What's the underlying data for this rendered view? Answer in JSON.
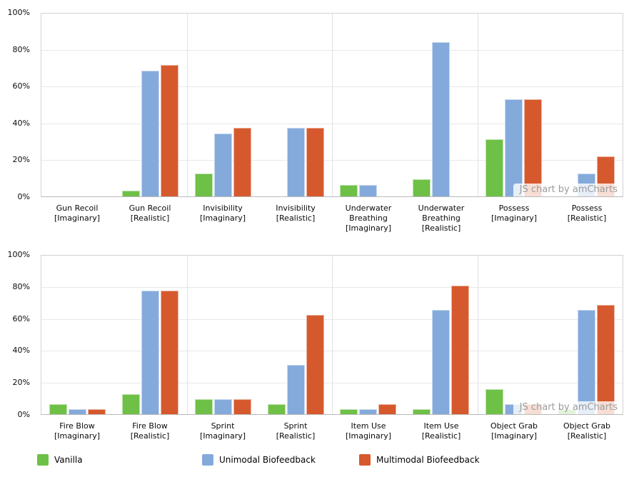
{
  "watermark": {
    "text": "JS chart by amCharts"
  },
  "y_axis": {
    "tick_labels": [
      "100%",
      "80%",
      "60%",
      "40%",
      "20%",
      "0%"
    ]
  },
  "colors": {
    "vanilla": "#6ec046",
    "unimodal": "#84aadb",
    "multimodal": "#d6592e",
    "gridline": "#e8e8e8",
    "plot_border": "#d2d2d2"
  },
  "legend": {
    "items": [
      {
        "label": "Vanilla",
        "color": "#6ec046"
      },
      {
        "label": "Unimodal Biofeedback",
        "color": "#84aadb"
      },
      {
        "label": "Multimodal Biofeedback",
        "color": "#d6592e"
      }
    ]
  },
  "chart_data": [
    {
      "type": "bar",
      "title": "",
      "xlabel": "",
      "ylabel": "",
      "ylim": [
        0,
        100
      ],
      "ytick_step": 20,
      "grid": true,
      "legend_position": "bottom-shared",
      "categories": [
        [
          "Gun Recoil",
          "[Imaginary]"
        ],
        [
          "Gun Recoil",
          "[Realistic]"
        ],
        [
          "Invisibility",
          "[Imaginary]"
        ],
        [
          "Invisibility",
          "[Realistic]"
        ],
        [
          "Underwater",
          "Breathing",
          "[Imaginary]"
        ],
        [
          "Underwater",
          "Breathing",
          "[Realistic]"
        ],
        [
          "Possess",
          "[Imaginary]"
        ],
        [
          "Possess",
          "[Realistic]"
        ]
      ],
      "series": [
        {
          "name": "Vanilla",
          "color": "#6ec046",
          "values": [
            0,
            3.1,
            12.5,
            0,
            6.3,
            9.4,
            31.3,
            0
          ]
        },
        {
          "name": "Unimodal Biofeedback",
          "color": "#84aadb",
          "values": [
            0,
            68.8,
            34.4,
            37.5,
            6.3,
            84.4,
            53.1,
            12.5
          ]
        },
        {
          "name": "Multimodal Biofeedback",
          "color": "#d6592e",
          "values": [
            0,
            71.9,
            37.5,
            37.5,
            0,
            0,
            53.1,
            21.9
          ]
        }
      ]
    },
    {
      "type": "bar",
      "title": "",
      "xlabel": "",
      "ylabel": "",
      "ylim": [
        0,
        100
      ],
      "ytick_step": 20,
      "grid": true,
      "legend_position": "bottom-shared",
      "categories": [
        [
          "Fire Blow",
          "[Imaginary]"
        ],
        [
          "Fire Blow",
          "[Realistic]"
        ],
        [
          "Sprint",
          "[Imaginary]"
        ],
        [
          "Sprint",
          "[Realistic]"
        ],
        [
          "Item Use",
          "[Imaginary]"
        ],
        [
          "Item Use",
          "[Realistic]"
        ],
        [
          "Object Grab",
          "[Imaginary]"
        ],
        [
          "Object Grab",
          "[Realistic]"
        ]
      ],
      "series": [
        {
          "name": "Vanilla",
          "color": "#6ec046",
          "values": [
            6.3,
            12.5,
            9.4,
            6.3,
            3.1,
            3.1,
            15.6,
            3.1
          ]
        },
        {
          "name": "Unimodal Biofeedback",
          "color": "#84aadb",
          "values": [
            3.1,
            78.1,
            9.4,
            31.3,
            3.1,
            65.6,
            6.3,
            65.6
          ]
        },
        {
          "name": "Multimodal Biofeedback",
          "color": "#d6592e",
          "values": [
            3.1,
            78.1,
            9.4,
            62.5,
            6.3,
            81.3,
            6.3,
            68.8
          ]
        }
      ]
    }
  ]
}
